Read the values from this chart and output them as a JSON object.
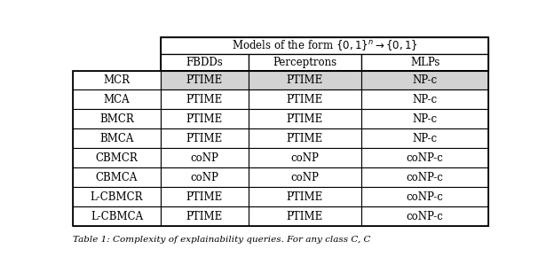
{
  "title": "Models of the form $\\{0,1\\}^n \\rightarrow \\{0,1\\}$",
  "col_headers": [
    "FBDDs",
    "Perceptrons",
    "MLPs"
  ],
  "row_labels": [
    "MCR",
    "MCA",
    "BMCR",
    "BMCA",
    "CBMCR",
    "CBMCA",
    "L-CBMCR",
    "L-CBMCA"
  ],
  "table_data": [
    [
      "PTIME",
      "PTIME",
      "NP-c"
    ],
    [
      "PTIME",
      "PTIME",
      "NP-c"
    ],
    [
      "PTIME",
      "PTIME",
      "NP-c"
    ],
    [
      "PTIME",
      "PTIME",
      "NP-c"
    ],
    [
      "coNP",
      "coNP",
      "coNP-c"
    ],
    [
      "coNP",
      "coNP",
      "coNP-c"
    ],
    [
      "PTIME",
      "PTIME",
      "coNP-c"
    ],
    [
      "PTIME",
      "PTIME",
      "coNP-c"
    ]
  ],
  "shaded_row": 0,
  "shade_color": "#d3d3d3",
  "bg_color": "#ffffff",
  "caption": "Table 1: Complexity of explainability queries. For any class C, C",
  "font_size": 8.5,
  "header_font_size": 8.5
}
